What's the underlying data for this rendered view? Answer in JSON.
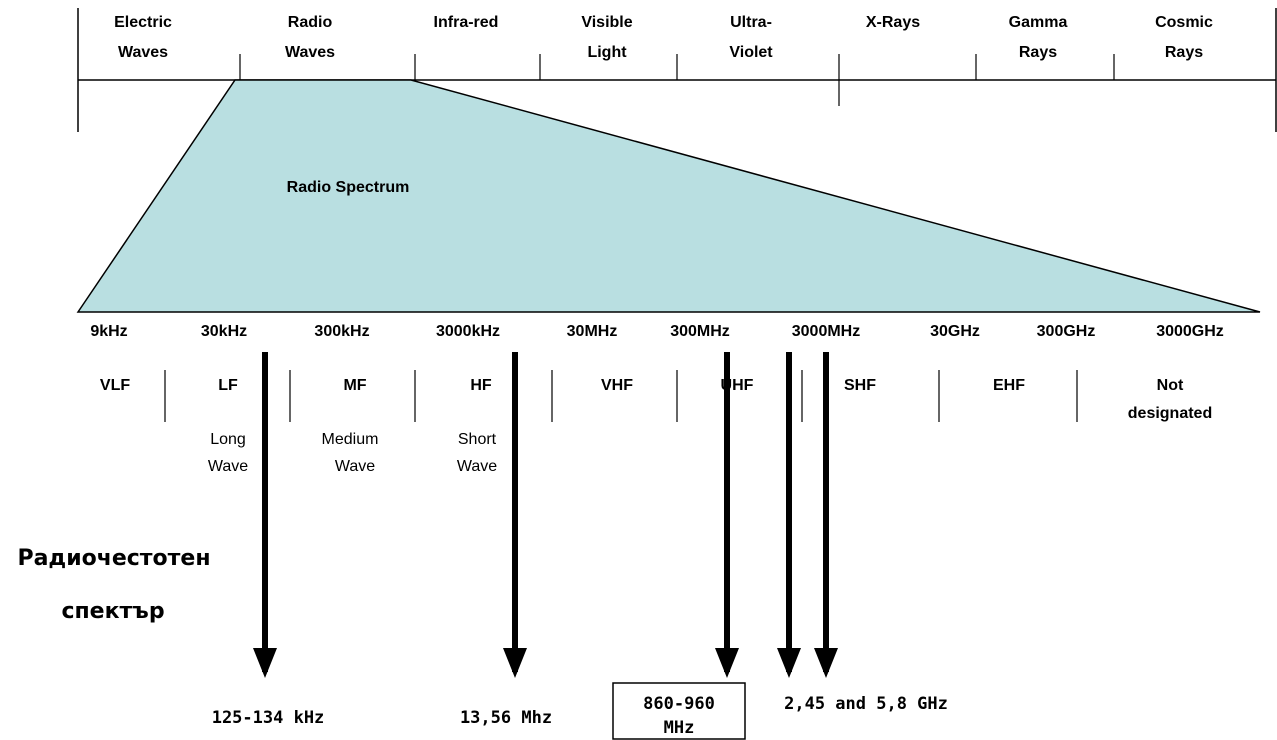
{
  "spectrum": {
    "categories": [
      {
        "line1": "Electric",
        "line2": "Waves"
      },
      {
        "line1": "Radio",
        "line2": "Waves"
      },
      {
        "line1": "Infra-red",
        "line2": ""
      },
      {
        "line1": "Visible",
        "line2": "Light"
      },
      {
        "line1": "Ultra-",
        "line2": "Violet"
      },
      {
        "line1": "X-Rays",
        "line2": ""
      },
      {
        "line1": "Gamma",
        "line2": "Rays"
      },
      {
        "line1": "Cosmic",
        "line2": "Rays"
      }
    ]
  },
  "radio_spectrum_label": "Radio Spectrum",
  "colors": {
    "radio_fill": "#b9dfe1",
    "line": "#000000"
  },
  "frequencies": [
    "9kHz",
    "30kHz",
    "300kHz",
    "3000kHz",
    "30MHz",
    "300MHz",
    "3000MHz",
    "30GHz",
    "300GHz",
    "3000GHz"
  ],
  "bands": [
    {
      "name": "VLF",
      "name2": "",
      "desc1": "",
      "desc2": ""
    },
    {
      "name": "LF",
      "name2": "",
      "desc1": "Long",
      "desc2": "Wave"
    },
    {
      "name": "MF",
      "name2": "",
      "desc1": "Medium",
      "desc2": "Wave"
    },
    {
      "name": "HF",
      "name2": "",
      "desc1": "Short",
      "desc2": "Wave"
    },
    {
      "name": "VHF",
      "name2": "",
      "desc1": "",
      "desc2": ""
    },
    {
      "name": "UHF",
      "name2": "",
      "desc1": "",
      "desc2": ""
    },
    {
      "name": "SHF",
      "name2": "",
      "desc1": "",
      "desc2": ""
    },
    {
      "name": "EHF",
      "name2": "",
      "desc1": "",
      "desc2": ""
    },
    {
      "name": "Not",
      "name2": "designated",
      "desc1": "",
      "desc2": ""
    }
  ],
  "side_label": {
    "line1": "Радиочестотен",
    "line2": "спектър"
  },
  "rfid_labels": {
    "lf": "125-134 kHz",
    "hf": "13,56 Mhz",
    "uhf_line1": "860-960",
    "uhf_line2": "MHz",
    "microwave": "2,45 and 5,8 GHz"
  }
}
